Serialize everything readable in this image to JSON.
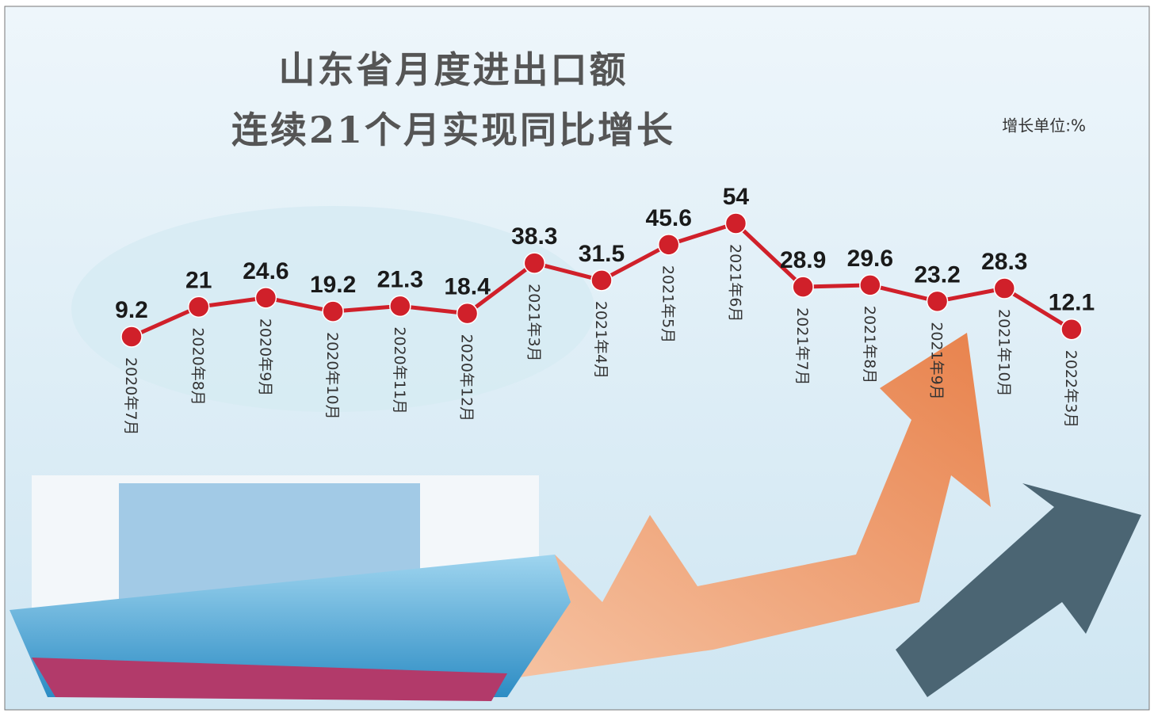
{
  "chart_data": {
    "type": "line",
    "title": "山东省月度进出口额",
    "subtitle": "连续21个月实现同比增长",
    "unit_note": "增长单位:%",
    "categories": [
      "2020年7月",
      "2020年8月",
      "2020年9月",
      "2020年10月",
      "2020年11月",
      "2020年12月",
      "2021年3月",
      "2021年4月",
      "2021年5月",
      "2021年6月",
      "2021年7月",
      "2021年8月",
      "2021年9月",
      "2021年10月",
      "2022年3月"
    ],
    "values": [
      9.2,
      21,
      24.6,
      19.2,
      21.3,
      18.4,
      38.3,
      31.5,
      45.6,
      54,
      28.9,
      29.6,
      23.2,
      28.3,
      12.1
    ],
    "color": "#d0202a"
  }
}
